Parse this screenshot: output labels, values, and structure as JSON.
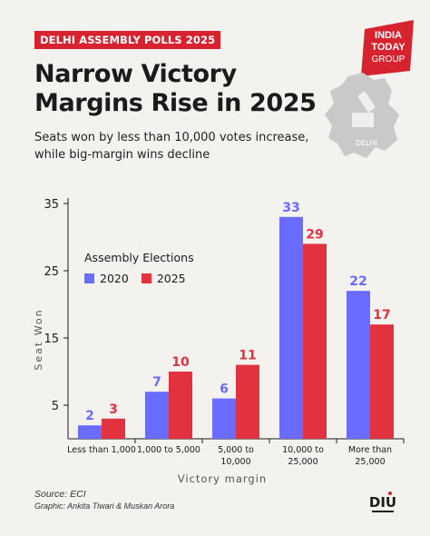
{
  "kicker": "DELHI ASSEMBLY POLLS 2025",
  "brand": {
    "line1": "INDIA",
    "line2": "TODAY",
    "line3": "GROUP"
  },
  "map_label": "DELHI",
  "title_lines": [
    "Narrow Victory",
    "Margins Rise in 2025"
  ],
  "subtitle_lines": [
    "Seats won by less than 10,000 votes increase,",
    "while big-margin wins decline"
  ],
  "legend": {
    "title": "Assembly Elections",
    "items": [
      "2020",
      "2025"
    ]
  },
  "source": "Source: ECI",
  "credit": "Graphic: Ankita Tiwari & Muskan Arora",
  "diu_logo": "DIU",
  "colors": {
    "2020": "#6a6bff",
    "2025": "#e2313f",
    "accent": "#d7232f"
  },
  "chart_data": {
    "type": "bar",
    "categories": [
      [
        "Less than 1,000"
      ],
      [
        "1,000 to 5,000"
      ],
      [
        "5,000 to",
        "10,000"
      ],
      [
        "10,000 to",
        "25,000"
      ],
      [
        "More than",
        "25,000"
      ]
    ],
    "series": [
      {
        "name": "2020",
        "values": [
          2,
          7,
          6,
          33,
          22
        ]
      },
      {
        "name": "2025",
        "values": [
          3,
          10,
          11,
          29,
          17
        ]
      }
    ],
    "xlabel": "Victory margin",
    "ylabel": "Seat Won",
    "ylim": [
      0,
      35
    ],
    "yticks": [
      5,
      15,
      25,
      35
    ],
    "grid": false
  }
}
